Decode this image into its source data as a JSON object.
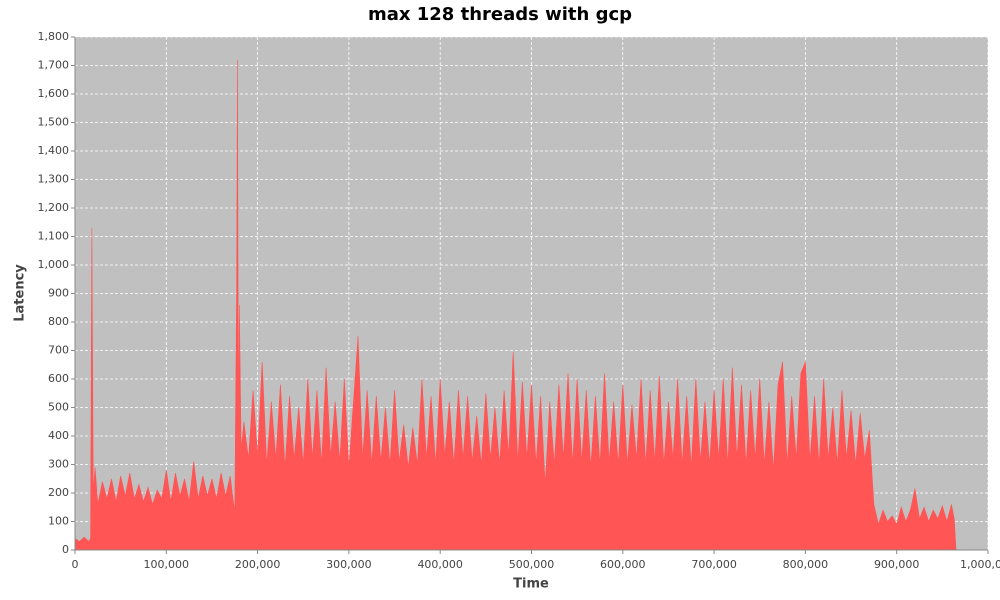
{
  "chart_data": {
    "type": "area",
    "title": "max 128 threads with gcp",
    "xlabel": "Time",
    "ylabel": "Latency",
    "xlim": [
      0,
      1000000
    ],
    "ylim": [
      0,
      1800
    ],
    "xticks": [
      0,
      {
        "value": 100000,
        "label": "100,000"
      },
      {
        "value": 200000,
        "label": "200,000"
      },
      {
        "value": 300000,
        "label": "300,000"
      },
      {
        "value": 400000,
        "label": "400,000"
      },
      {
        "value": 500000,
        "label": "500,000"
      },
      {
        "value": 600000,
        "label": "600,000"
      },
      {
        "value": 700000,
        "label": "700,000"
      },
      {
        "value": 800000,
        "label": "800,000"
      },
      {
        "value": 900000,
        "label": "900,000"
      },
      {
        "value": 1000000,
        "label": "1,000,000"
      }
    ],
    "yticks": [
      0,
      100,
      200,
      300,
      400,
      500,
      600,
      700,
      800,
      900,
      {
        "value": 1000,
        "label": "1,000"
      },
      {
        "value": 1100,
        "label": "1,100"
      },
      {
        "value": 1200,
        "label": "1,200"
      },
      {
        "value": 1300,
        "label": "1,300"
      },
      {
        "value": 1400,
        "label": "1,400"
      },
      {
        "value": 1500,
        "label": "1,500"
      },
      {
        "value": 1600,
        "label": "1,600"
      },
      {
        "value": 1700,
        "label": "1,700"
      },
      {
        "value": 1800,
        "label": "1,800"
      }
    ],
    "grid": true,
    "x": [
      0,
      5000,
      10000,
      15000,
      17000,
      18500,
      20000,
      22000,
      25000,
      30000,
      35000,
      40000,
      45000,
      50000,
      55000,
      60000,
      65000,
      70000,
      75000,
      80000,
      85000,
      90000,
      95000,
      100000,
      105000,
      110000,
      115000,
      120000,
      125000,
      130000,
      135000,
      140000,
      145000,
      150000,
      155000,
      160000,
      165000,
      170000,
      175000,
      177000,
      178000,
      179000,
      180000,
      182000,
      185000,
      190000,
      195000,
      200000,
      205000,
      210000,
      215000,
      220000,
      225000,
      230000,
      235000,
      240000,
      245000,
      250000,
      255000,
      260000,
      265000,
      270000,
      275000,
      280000,
      285000,
      290000,
      295000,
      300000,
      305000,
      310000,
      315000,
      320000,
      325000,
      330000,
      335000,
      340000,
      345000,
      350000,
      355000,
      360000,
      365000,
      370000,
      375000,
      380000,
      385000,
      390000,
      395000,
      400000,
      405000,
      410000,
      415000,
      420000,
      425000,
      430000,
      435000,
      440000,
      445000,
      450000,
      455000,
      460000,
      465000,
      470000,
      475000,
      480000,
      485000,
      490000,
      495000,
      500000,
      505000,
      510000,
      515000,
      520000,
      525000,
      530000,
      535000,
      540000,
      545000,
      550000,
      555000,
      560000,
      565000,
      570000,
      575000,
      580000,
      585000,
      590000,
      595000,
      600000,
      605000,
      610000,
      615000,
      620000,
      625000,
      630000,
      635000,
      640000,
      645000,
      650000,
      655000,
      660000,
      665000,
      670000,
      675000,
      680000,
      685000,
      690000,
      695000,
      700000,
      705000,
      710000,
      715000,
      720000,
      725000,
      730000,
      735000,
      740000,
      745000,
      750000,
      755000,
      760000,
      765000,
      770000,
      775000,
      780000,
      785000,
      790000,
      795000,
      800000,
      805000,
      810000,
      815000,
      820000,
      825000,
      830000,
      835000,
      840000,
      845000,
      850000,
      855000,
      860000,
      865000,
      870000,
      875000,
      880000,
      885000,
      890000,
      895000,
      900000,
      905000,
      910000,
      915000,
      920000,
      925000,
      930000,
      935000,
      940000,
      945000,
      950000,
      955000,
      960000,
      963000,
      965000
    ],
    "series": [
      {
        "name": "Latency",
        "color": "#ff5555",
        "values": [
          40,
          30,
          45,
          30,
          40,
          1130,
          200,
          290,
          160,
          240,
          180,
          250,
          170,
          260,
          190,
          270,
          180,
          230,
          170,
          220,
          160,
          210,
          180,
          280,
          170,
          270,
          190,
          250,
          170,
          310,
          180,
          260,
          190,
          250,
          180,
          270,
          190,
          260,
          130,
          900,
          1720,
          400,
          860,
          350,
          450,
          320,
          560,
          330,
          660,
          300,
          520,
          320,
          580,
          290,
          540,
          320,
          500,
          300,
          600,
          320,
          560,
          300,
          640,
          330,
          520,
          310,
          600,
          290,
          520,
          750,
          320,
          560,
          300,
          540,
          310,
          500,
          300,
          560,
          310,
          440,
          290,
          430,
          300,
          600,
          320,
          540,
          300,
          600,
          330,
          520,
          300,
          560,
          320,
          540,
          310,
          470,
          300,
          550,
          320,
          500,
          300,
          560,
          330,
          695,
          310,
          590,
          320,
          580,
          300,
          540,
          230,
          520,
          300,
          580,
          320,
          620,
          300,
          600,
          310,
          560,
          290,
          540,
          300,
          620,
          310,
          520,
          300,
          580,
          300,
          510,
          320,
          600,
          300,
          560,
          310,
          610,
          300,
          520,
          320,
          600,
          300,
          540,
          290,
          600,
          310,
          520,
          300,
          560,
          320,
          600,
          300,
          640,
          320,
          580,
          300,
          560,
          320,
          600,
          300,
          520,
          280,
          580,
          660,
          300,
          540,
          320,
          620,
          660,
          310,
          540,
          300,
          600,
          320,
          500,
          300,
          560,
          320,
          490,
          300,
          480,
          320,
          420,
          160,
          90,
          140,
          100,
          120,
          90,
          150,
          100,
          140,
          215,
          110,
          150,
          100,
          140,
          110,
          155,
          100,
          160,
          110,
          0
        ]
      }
    ]
  }
}
